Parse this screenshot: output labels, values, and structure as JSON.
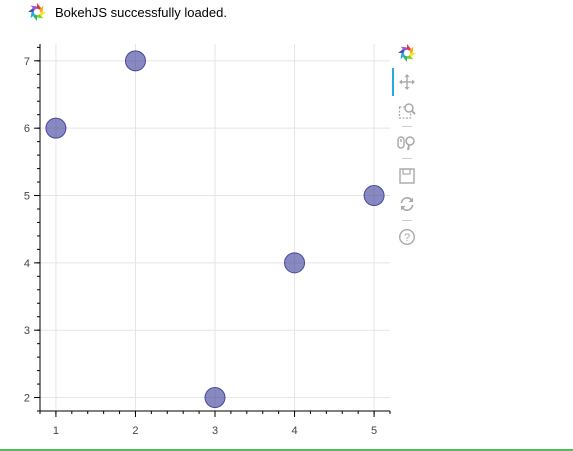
{
  "banner": {
    "text": "BokehJS successfully loaded.",
    "logo_icon": "bokeh-logo-icon"
  },
  "toolbar": {
    "tools": [
      {
        "name": "bokeh-logo-icon",
        "active": false
      },
      {
        "name": "pan-icon",
        "active": true
      },
      {
        "name": "box-zoom-icon",
        "active": false
      },
      {
        "name": "wheel-zoom-icon",
        "active": false
      },
      {
        "name": "save-icon",
        "active": false
      },
      {
        "name": "reset-icon",
        "active": false
      },
      {
        "name": "help-icon",
        "active": false
      }
    ],
    "accent_color": "#26aae1",
    "icon_color": "#a9a9a9"
  },
  "chart_data": {
    "type": "scatter",
    "x": [
      1,
      2,
      3,
      4,
      5
    ],
    "y": [
      6,
      7,
      2,
      4,
      5
    ],
    "xlim": [
      0.8,
      5.2
    ],
    "ylim": [
      1.8,
      7.25
    ],
    "xticks": [
      "1",
      "2",
      "3",
      "4",
      "5"
    ],
    "yticks": [
      "2",
      "3",
      "4",
      "5",
      "6",
      "7"
    ],
    "grid": true,
    "marker_color": "#3a3a99",
    "marker_alpha": 0.6
  }
}
